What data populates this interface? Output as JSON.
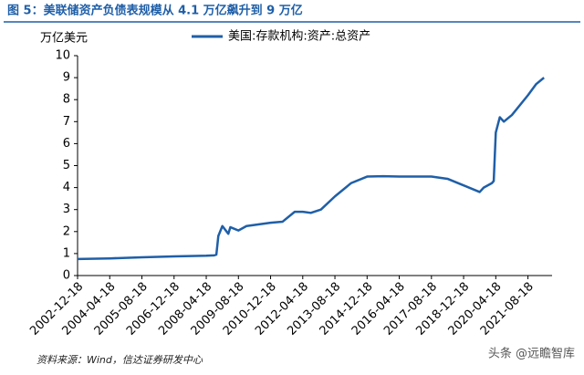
{
  "chart_data": {
    "type": "line",
    "title": "图 5：美联储资产负债表规模从 4.1 万亿飙升到 9 万亿",
    "y_unit": "万亿美元",
    "source": "资料来源：Wind，信达证券研发中心",
    "watermark": "头条 @远瞻智库",
    "x": [
      "2002-12-18",
      "2004-04-18",
      "2005-08-18",
      "2006-12-18",
      "2008-04-18",
      "2008-08-18",
      "2008-09-18",
      "2008-10-18",
      "2008-12-18",
      "2009-03-18",
      "2009-04-18",
      "2009-08-18",
      "2009-12-18",
      "2010-12-18",
      "2011-06-18",
      "2011-12-18",
      "2012-04-18",
      "2012-08-18",
      "2013-01-18",
      "2013-08-18",
      "2014-04-18",
      "2014-12-18",
      "2015-08-18",
      "2016-04-18",
      "2017-08-18",
      "2018-04-18",
      "2018-12-18",
      "2019-08-18",
      "2019-10-18",
      "2020-02-18",
      "2020-03-18",
      "2020-04-18",
      "2020-06-18",
      "2020-08-18",
      "2020-12-18",
      "2021-08-18",
      "2021-12-18",
      "2022-04-18"
    ],
    "series": [
      {
        "name": "美国:存款机构:资产:总资产",
        "color": "#1f5fa8",
        "values": [
          0.75,
          0.78,
          0.83,
          0.87,
          0.9,
          0.92,
          0.95,
          1.8,
          2.25,
          1.9,
          2.2,
          2.05,
          2.25,
          2.4,
          2.45,
          2.9,
          2.9,
          2.85,
          3.0,
          3.6,
          4.2,
          4.5,
          4.52,
          4.5,
          4.5,
          4.4,
          4.1,
          3.8,
          4.0,
          4.2,
          4.3,
          6.5,
          7.2,
          7.0,
          7.3,
          8.2,
          8.7,
          9.0
        ]
      }
    ],
    "xlim": [
      "2002-12-18",
      "2022-08-18"
    ],
    "xticks": [
      "2002-12-18",
      "2004-04-18",
      "2005-08-18",
      "2006-12-18",
      "2008-04-18",
      "2009-08-18",
      "2010-12-18",
      "2012-04-18",
      "2013-08-18",
      "2014-12-18",
      "2016-04-18",
      "2017-08-18",
      "2018-12-18",
      "2020-04-18",
      "2021-08-18"
    ],
    "ylim": [
      0,
      10
    ],
    "yticks": [
      0,
      1,
      2,
      3,
      4,
      5,
      6,
      7,
      8,
      9,
      10
    ],
    "grid": false
  }
}
